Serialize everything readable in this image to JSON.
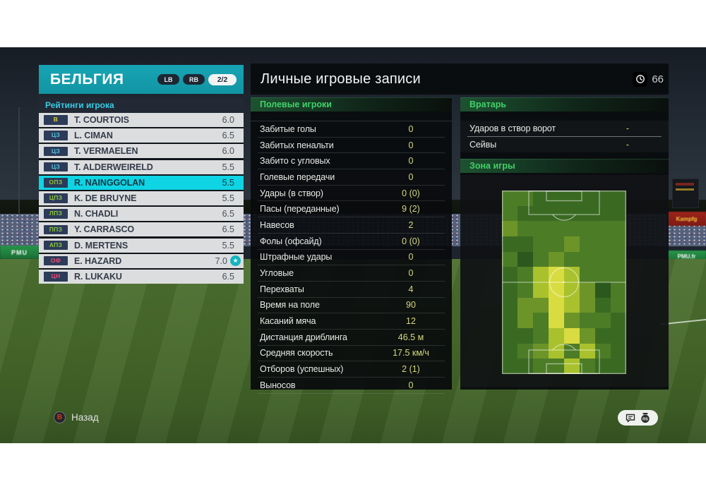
{
  "team_panel": {
    "title": "БЕЛЬГИЯ",
    "bumper_left": "LB",
    "bumper_right": "RB",
    "page_indicator": "2/2",
    "section_title": "Рейтинги игрока",
    "players": [
      {
        "pos": "В",
        "pos_color": "#e0ca32",
        "name": "T. COURTOIS",
        "rating": "6.0",
        "selected": false,
        "star": false
      },
      {
        "pos": "ЦЗ",
        "pos_color": "#4fc3e0",
        "name": "L. CIMAN",
        "rating": "6.5",
        "selected": false,
        "star": false
      },
      {
        "pos": "ЦЗ",
        "pos_color": "#4fc3e0",
        "name": "T. VERMAELEN",
        "rating": "6.0",
        "selected": false,
        "star": false
      },
      {
        "pos": "ЦЗ",
        "pos_color": "#4fc3e0",
        "name": "T. ALDERWEIRELD",
        "rating": "5.5",
        "selected": false,
        "star": false
      },
      {
        "pos": "ОПЗ",
        "pos_color": "#8cc83c",
        "name": "R. NAINGGOLAN",
        "rating": "5.5",
        "selected": true,
        "star": false
      },
      {
        "pos": "ЦПЗ",
        "pos_color": "#8cc83c",
        "name": "K. DE BRUYNE",
        "rating": "5.5",
        "selected": false,
        "star": false
      },
      {
        "pos": "ЛПЗ",
        "pos_color": "#8cc83c",
        "name": "N. CHADLI",
        "rating": "6.5",
        "selected": false,
        "star": false
      },
      {
        "pos": "ППЗ",
        "pos_color": "#8cc83c",
        "name": "Y. CARRASCO",
        "rating": "6.5",
        "selected": false,
        "star": false
      },
      {
        "pos": "АПЗ",
        "pos_color": "#8cc83c",
        "name": "D. MERTENS",
        "rating": "5.5",
        "selected": false,
        "star": false
      },
      {
        "pos": "ОФ",
        "pos_color": "#e84a78",
        "name": "E. HAZARD",
        "rating": "7.0",
        "selected": false,
        "star": true
      },
      {
        "pos": "ЦН",
        "pos_color": "#e84a78",
        "name": "R. LUKAKU",
        "rating": "6.5",
        "selected": false,
        "star": false
      }
    ]
  },
  "main": {
    "title": "Личные игровые записи",
    "time_badge": "66",
    "field_players": {
      "header": "Полевые игроки",
      "stats": [
        {
          "label": "Забитые голы",
          "value": "0"
        },
        {
          "label": "Забитых пенальти",
          "value": "0"
        },
        {
          "label": "Забито с угловых",
          "value": "0"
        },
        {
          "label": "Голевые передачи",
          "value": "0"
        },
        {
          "label": "Удары (в створ)",
          "value": "0 (0)"
        },
        {
          "label": "Пасы (переданные)",
          "value": "9 (2)"
        },
        {
          "label": "Навесов",
          "value": "2"
        },
        {
          "label": "Фолы (офсайд)",
          "value": "0 (0)"
        },
        {
          "label": "Штрафные удары",
          "value": "0"
        },
        {
          "label": "Угловые",
          "value": "0"
        },
        {
          "label": "Перехваты",
          "value": "4"
        },
        {
          "label": "Время на поле",
          "value": "90"
        },
        {
          "label": "Касаний мяча",
          "value": "12"
        },
        {
          "label": "Дистанция дриблинга",
          "value": "46.5 м"
        },
        {
          "label": "Средняя скорость",
          "value": "17.5 км/ч"
        },
        {
          "label": "Отборов (успешных)",
          "value": "2 (1)"
        },
        {
          "label": "Выносов",
          "value": "0"
        }
      ]
    },
    "goalkeeper": {
      "header": "Вратарь",
      "stats": [
        {
          "label": "Ударов в створ ворот",
          "value": "-"
        },
        {
          "label": "Сейвы",
          "value": "-"
        }
      ]
    },
    "zone": {
      "header": "Зона игры",
      "heatmap": {
        "cols": 8,
        "rows": 12,
        "palette": [
          "#2b581d",
          "#3a6a22",
          "#4d7c27",
          "#6d9429",
          "#a9c12c",
          "#d9dc41"
        ],
        "grid": [
          [
            2,
            2,
            1,
            1,
            1,
            1,
            1,
            1
          ],
          [
            2,
            1,
            1,
            1,
            1,
            1,
            1,
            1
          ],
          [
            3,
            2,
            2,
            2,
            2,
            2,
            2,
            2
          ],
          [
            1,
            1,
            2,
            2,
            3,
            2,
            2,
            2
          ],
          [
            2,
            0,
            2,
            3,
            2,
            2,
            2,
            2
          ],
          [
            1,
            2,
            4,
            5,
            4,
            2,
            2,
            2
          ],
          [
            1,
            2,
            4,
            5,
            4,
            3,
            0,
            2
          ],
          [
            1,
            3,
            3,
            5,
            4,
            3,
            1,
            2
          ],
          [
            1,
            3,
            2,
            5,
            3,
            2,
            2,
            1
          ],
          [
            1,
            1,
            2,
            4,
            5,
            3,
            1,
            1
          ],
          [
            1,
            2,
            3,
            4,
            2,
            4,
            2,
            1
          ],
          [
            1,
            1,
            2,
            2,
            4,
            2,
            1,
            1
          ]
        ]
      }
    }
  },
  "footer": {
    "back_key": "B",
    "back_label": "Назад"
  },
  "background": {
    "ad_left": "PMU",
    "ad_right": "Kampfg",
    "ad_right2": "PMU.fr"
  },
  "icons": {
    "star": "★"
  },
  "colors": {
    "header_teal": "#17a4b4",
    "selection_cyan": "#0fd4e4",
    "ratings_cyan": "#38cde4",
    "section_green": "#41d169",
    "value_yellow": "#d6d97d",
    "star_teal": "#12b5bf",
    "back_key_red": "#cf3b28"
  }
}
